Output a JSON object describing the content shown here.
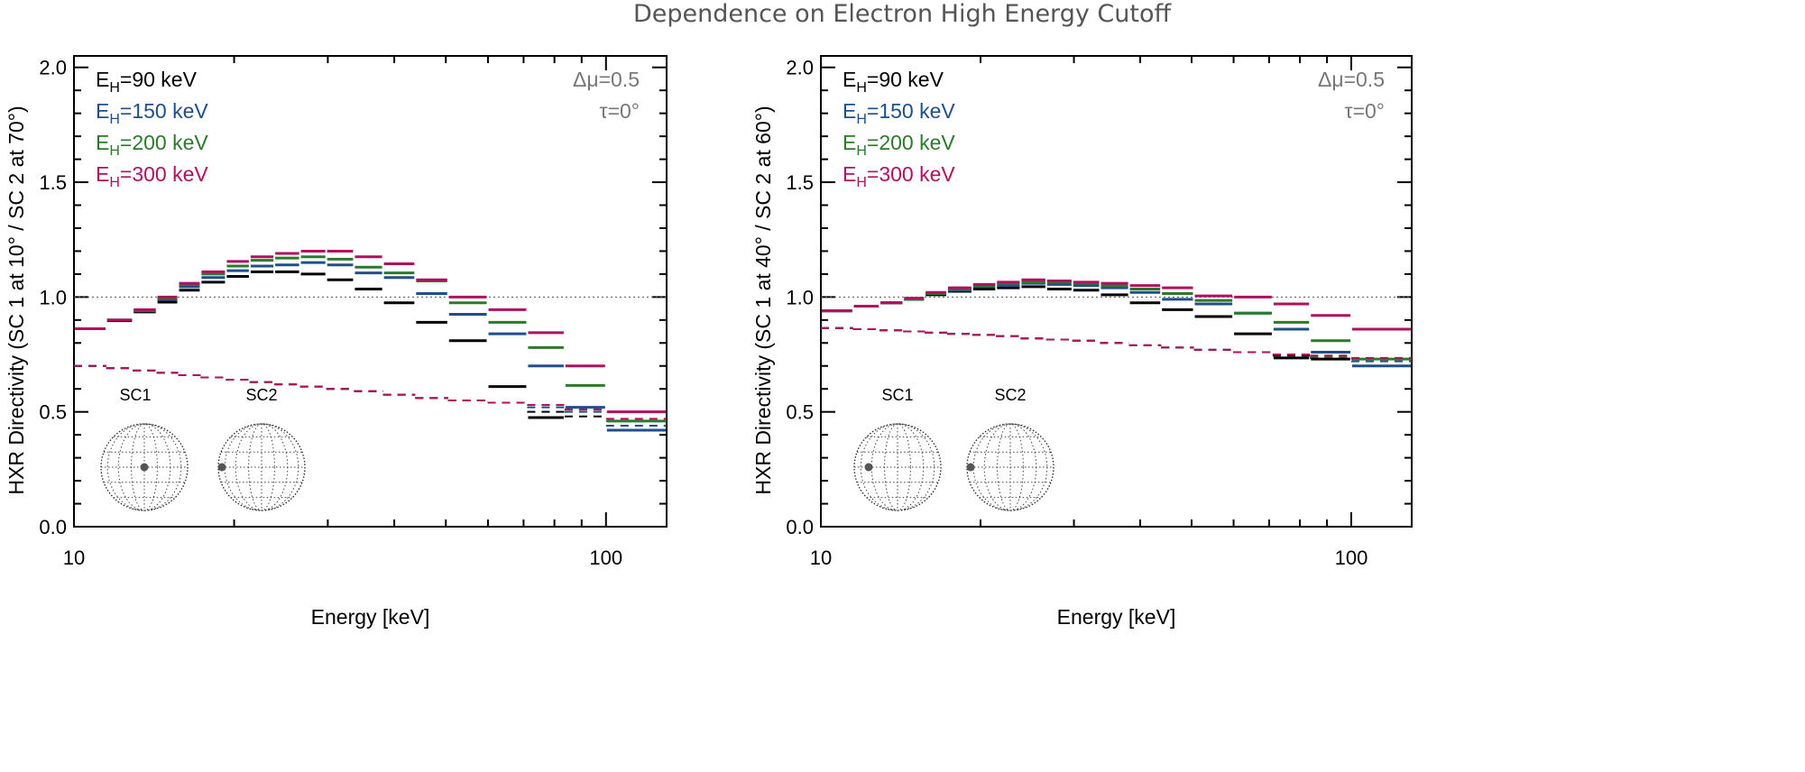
{
  "title": "Dependence on Electron High Energy Cutoff",
  "colors": {
    "black": "#000000",
    "blue": "#1f4e8c",
    "green": "#2b7a2b",
    "red": "#b0105e",
    "annot": "#777777"
  },
  "chart_data": [
    {
      "type": "line",
      "step": true,
      "xlabel": "Energy [keV]",
      "ylabel": "HXR Directivity (SC 1 at 10° / SC 2 at 70°)",
      "xscale": "log",
      "xlim": [
        10,
        130
      ],
      "ylim": [
        0.0,
        2.05
      ],
      "xticks": [
        "10",
        "100"
      ],
      "yticks": [
        "0.0",
        "0.5",
        "1.0",
        "1.5",
        "2.0"
      ],
      "reference_line": 1.0,
      "annotations": [
        "Δμ=0.5",
        "τ=0°"
      ],
      "inset_labels": [
        "SC1",
        "SC2"
      ],
      "legend_position": "top-left",
      "bin_edges": [
        10.0,
        11.5,
        12.9,
        14.3,
        15.7,
        17.3,
        19.3,
        21.4,
        23.8,
        26.6,
        29.8,
        33.6,
        38.1,
        43.8,
        50.5,
        59.9,
        71.1,
        83.6,
        100,
        130
      ],
      "series": [
        {
          "name": "E_H=90 keV",
          "legend": {
            "base": "E",
            "sub": "H",
            "rest": "=90 keV"
          },
          "color": "#000000",
          "values": [
            0.862,
            0.897,
            0.935,
            0.978,
            1.03,
            1.065,
            1.09,
            1.11,
            1.11,
            1.1,
            1.075,
            1.035,
            0.975,
            0.89,
            0.81,
            0.61,
            0.475,
            null,
            null
          ],
          "dashed": [
            0.7,
            0.69,
            0.68,
            0.67,
            0.66,
            0.65,
            0.64,
            0.63,
            0.62,
            0.61,
            0.6,
            0.59,
            0.575,
            0.56,
            0.55,
            0.54,
            0.5,
            0.48,
            null
          ]
        },
        {
          "name": "E_H=150 keV",
          "legend": {
            "base": "E",
            "sub": "H",
            "rest": "=150 keV"
          },
          "color": "#1f4e8c",
          "values": [
            0.862,
            0.9,
            0.94,
            0.99,
            1.045,
            1.085,
            1.115,
            1.135,
            1.14,
            1.15,
            1.14,
            1.105,
            1.085,
            1.015,
            0.925,
            0.84,
            0.7,
            0.52,
            0.42
          ],
          "dashed": [
            0.7,
            0.69,
            0.68,
            0.67,
            0.66,
            0.65,
            0.64,
            0.63,
            0.62,
            0.61,
            0.6,
            0.59,
            0.575,
            0.56,
            0.55,
            0.54,
            0.52,
            0.5,
            0.44
          ]
        },
        {
          "name": "E_H=200 keV",
          "legend": {
            "base": "E",
            "sub": "H",
            "rest": "=200 keV"
          },
          "color": "#2b7a2b",
          "values": [
            0.862,
            0.9,
            0.94,
            0.995,
            1.055,
            1.1,
            1.135,
            1.16,
            1.17,
            1.175,
            1.165,
            1.13,
            1.105,
            1.07,
            0.975,
            0.89,
            0.78,
            0.615,
            0.46
          ],
          "dashed": [
            0.7,
            0.69,
            0.68,
            0.67,
            0.66,
            0.65,
            0.64,
            0.63,
            0.62,
            0.61,
            0.6,
            0.59,
            0.575,
            0.56,
            0.55,
            0.54,
            0.53,
            0.51,
            0.46
          ]
        },
        {
          "name": "E_H=300 keV",
          "legend": {
            "base": "E",
            "sub": "H",
            "rest": "=300 keV"
          },
          "color": "#b0105e",
          "values": [
            0.862,
            0.9,
            0.945,
            1.0,
            1.06,
            1.11,
            1.155,
            1.175,
            1.19,
            1.2,
            1.2,
            1.175,
            1.145,
            1.075,
            1.0,
            0.945,
            0.845,
            0.7,
            0.5
          ],
          "dashed": [
            0.7,
            0.69,
            0.68,
            0.67,
            0.66,
            0.65,
            0.64,
            0.63,
            0.62,
            0.61,
            0.6,
            0.59,
            0.575,
            0.56,
            0.55,
            0.54,
            0.53,
            0.51,
            0.47
          ]
        }
      ]
    },
    {
      "type": "line",
      "step": true,
      "xlabel": "Energy [keV]",
      "ylabel": "HXR Directivity (SC 1 at 40° / SC 2 at 60°)",
      "xscale": "log",
      "xlim": [
        10,
        130
      ],
      "ylim": [
        0.0,
        2.05
      ],
      "xticks": [
        "10",
        "100"
      ],
      "yticks": [
        "0.0",
        "0.5",
        "1.0",
        "1.5",
        "2.0"
      ],
      "reference_line": 1.0,
      "annotations": [
        "Δμ=0.5",
        "τ=0°"
      ],
      "inset_labels": [
        "SC1",
        "SC2"
      ],
      "legend_position": "top-left",
      "bin_edges": [
        10.0,
        11.5,
        12.9,
        14.3,
        15.7,
        17.3,
        19.3,
        21.4,
        23.8,
        26.6,
        29.8,
        33.6,
        38.1,
        43.8,
        50.5,
        59.9,
        71.1,
        83.6,
        100,
        130
      ],
      "series": [
        {
          "name": "E_H=90 keV",
          "legend": {
            "base": "E",
            "sub": "H",
            "rest": "=90 keV"
          },
          "color": "#000000",
          "values": [
            0.94,
            0.96,
            0.975,
            0.99,
            1.01,
            1.025,
            1.035,
            1.04,
            1.045,
            1.035,
            1.03,
            1.01,
            0.975,
            0.945,
            0.915,
            0.84,
            0.735,
            0.73,
            null
          ],
          "dashed": [
            0.865,
            0.86,
            0.855,
            0.85,
            0.845,
            0.84,
            0.835,
            0.83,
            0.82,
            0.815,
            0.81,
            0.8,
            0.79,
            0.78,
            0.77,
            0.76,
            0.745,
            0.735,
            null
          ]
        },
        {
          "name": "E_H=150 keV",
          "legend": {
            "base": "E",
            "sub": "H",
            "rest": "=150 keV"
          },
          "color": "#1f4e8c",
          "values": [
            0.94,
            0.96,
            0.975,
            0.99,
            1.015,
            1.03,
            1.045,
            1.05,
            1.06,
            1.055,
            1.05,
            1.04,
            1.02,
            0.99,
            0.97,
            0.93,
            0.86,
            0.76,
            0.7
          ],
          "dashed": [
            0.865,
            0.86,
            0.855,
            0.85,
            0.845,
            0.84,
            0.835,
            0.83,
            0.82,
            0.815,
            0.81,
            0.8,
            0.79,
            0.78,
            0.77,
            0.76,
            0.75,
            0.74,
            0.72
          ]
        },
        {
          "name": "E_H=200 keV",
          "legend": {
            "base": "E",
            "sub": "H",
            "rest": "=200 keV"
          },
          "color": "#2b7a2b",
          "values": [
            0.94,
            0.96,
            0.975,
            0.99,
            1.015,
            1.035,
            1.05,
            1.06,
            1.065,
            1.065,
            1.06,
            1.05,
            1.035,
            1.015,
            0.985,
            0.93,
            0.89,
            0.81,
            0.73
          ],
          "dashed": [
            0.865,
            0.86,
            0.855,
            0.85,
            0.845,
            0.84,
            0.835,
            0.83,
            0.82,
            0.815,
            0.81,
            0.8,
            0.79,
            0.78,
            0.77,
            0.76,
            0.75,
            0.74,
            0.73
          ]
        },
        {
          "name": "E_H=300 keV",
          "legend": {
            "base": "E",
            "sub": "H",
            "rest": "=300 keV"
          },
          "color": "#b0105e",
          "values": [
            0.94,
            0.96,
            0.975,
            0.995,
            1.02,
            1.04,
            1.055,
            1.065,
            1.075,
            1.07,
            1.065,
            1.06,
            1.05,
            1.04,
            1.005,
            1.0,
            0.97,
            0.92,
            0.86
          ],
          "dashed": [
            0.865,
            0.86,
            0.855,
            0.85,
            0.845,
            0.84,
            0.835,
            0.83,
            0.82,
            0.815,
            0.81,
            0.8,
            0.79,
            0.78,
            0.77,
            0.76,
            0.75,
            0.745,
            0.735
          ]
        }
      ]
    }
  ]
}
